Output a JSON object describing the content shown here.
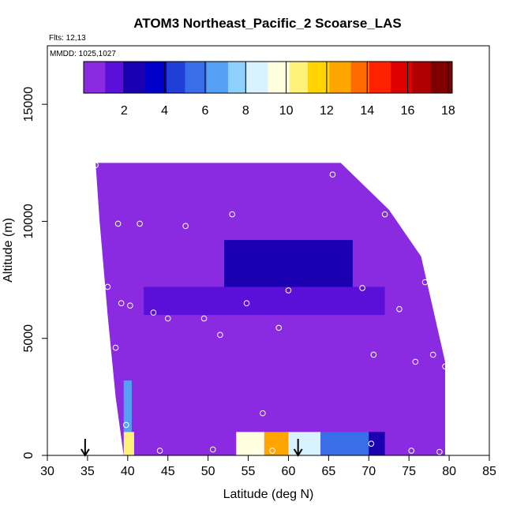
{
  "chart_data": {
    "type": "heatmap",
    "title": "ATOM3 Northeast_Pacific_2 Scoarse_LAS",
    "flights_label": "Flts: 12,13",
    "dates_label": "MMDD: 1025,1027",
    "xlabel": "Latitude (deg N)",
    "ylabel": "Altitude (m)",
    "xlim": [
      30,
      85
    ],
    "ylim": [
      0,
      17500
    ],
    "x_ticks": [
      "30",
      "35",
      "40",
      "45",
      "50",
      "55",
      "60",
      "65",
      "70",
      "75",
      "80",
      "85"
    ],
    "y_ticks": [
      "0",
      "5000",
      "10000",
      "15000"
    ],
    "colorbar": {
      "range": [
        0,
        18.2
      ],
      "ticks": [
        "2",
        "4",
        "6",
        "8",
        "10",
        "12",
        "14",
        "16",
        "18"
      ],
      "colors": [
        "#8a2be2",
        "#5a10d8",
        "#1a00b0",
        "#0000c8",
        "#1f3fd6",
        "#3a6ee8",
        "#55a0f5",
        "#8fd0ff",
        "#d8f2ff",
        "#ffffe0",
        "#fff27a",
        "#ffd400",
        "#ffa500",
        "#ff6a00",
        "#ff2200",
        "#dd0000",
        "#b00000",
        "#800000"
      ]
    },
    "arrows_latitude": [
      34.7,
      61.2
    ],
    "sample_points": [
      {
        "lat": 36.0,
        "alt": 12400
      },
      {
        "lat": 65.5,
        "alt": 12000
      },
      {
        "lat": 53.0,
        "alt": 10300
      },
      {
        "lat": 72.0,
        "alt": 10300
      },
      {
        "lat": 38.8,
        "alt": 9900
      },
      {
        "lat": 41.5,
        "alt": 9900
      },
      {
        "lat": 47.2,
        "alt": 9800
      },
      {
        "lat": 77.0,
        "alt": 7400
      },
      {
        "lat": 37.5,
        "alt": 7200
      },
      {
        "lat": 60.0,
        "alt": 7050
      },
      {
        "lat": 69.2,
        "alt": 7150
      },
      {
        "lat": 39.2,
        "alt": 6500
      },
      {
        "lat": 40.3,
        "alt": 6400
      },
      {
        "lat": 54.8,
        "alt": 6500
      },
      {
        "lat": 73.8,
        "alt": 6250
      },
      {
        "lat": 43.2,
        "alt": 6100
      },
      {
        "lat": 45.0,
        "alt": 5850
      },
      {
        "lat": 49.5,
        "alt": 5850
      },
      {
        "lat": 58.8,
        "alt": 5450
      },
      {
        "lat": 51.5,
        "alt": 5150
      },
      {
        "lat": 38.5,
        "alt": 4600
      },
      {
        "lat": 70.6,
        "alt": 4300
      },
      {
        "lat": 78.0,
        "alt": 4300
      },
      {
        "lat": 75.8,
        "alt": 4000
      },
      {
        "lat": 79.5,
        "alt": 3800
      },
      {
        "lat": 56.8,
        "alt": 1800
      },
      {
        "lat": 39.8,
        "alt": 1300
      },
      {
        "lat": 70.3,
        "alt": 500
      },
      {
        "lat": 44.0,
        "alt": 200
      },
      {
        "lat": 50.6,
        "alt": 250
      },
      {
        "lat": 56.0,
        "alt": 200
      },
      {
        "lat": 58.0,
        "alt": 200
      },
      {
        "lat": 75.3,
        "alt": 200
      },
      {
        "lat": 78.8,
        "alt": 150
      }
    ],
    "cells": [
      {
        "lat0": 36.0,
        "lat1": 79.5,
        "alt0": 0,
        "alt1": 12500,
        "value": 0.3,
        "note": "background field"
      },
      {
        "lat0": 52,
        "lat1": 68,
        "alt0": 7000,
        "alt1": 9200,
        "value": 2.2
      },
      {
        "lat0": 55,
        "lat1": 65,
        "alt0": 7500,
        "alt1": 8800,
        "value": 2.8
      },
      {
        "lat0": 42,
        "lat1": 72,
        "alt0": 6000,
        "alt1": 7200,
        "value": 1.2
      },
      {
        "lat0": 39.5,
        "lat1": 40.5,
        "alt0": 1000,
        "alt1": 3200,
        "value": 6.5
      },
      {
        "lat0": 39.5,
        "lat1": 40.8,
        "alt0": 0,
        "alt1": 1000,
        "value": 10.5
      },
      {
        "lat0": 53.5,
        "lat1": 57,
        "alt0": 0,
        "alt1": 1000,
        "value": 9.5
      },
      {
        "lat0": 57,
        "lat1": 60,
        "alt0": 0,
        "alt1": 1000,
        "value": 12.5
      },
      {
        "lat0": 60,
        "lat1": 64,
        "alt0": 0,
        "alt1": 1000,
        "value": 9.0
      },
      {
        "lat0": 64,
        "lat1": 70,
        "alt0": 0,
        "alt1": 1000,
        "value": 6.0
      },
      {
        "lat0": 70,
        "lat1": 72,
        "alt0": 0,
        "alt1": 1000,
        "value": 3.0
      }
    ]
  }
}
